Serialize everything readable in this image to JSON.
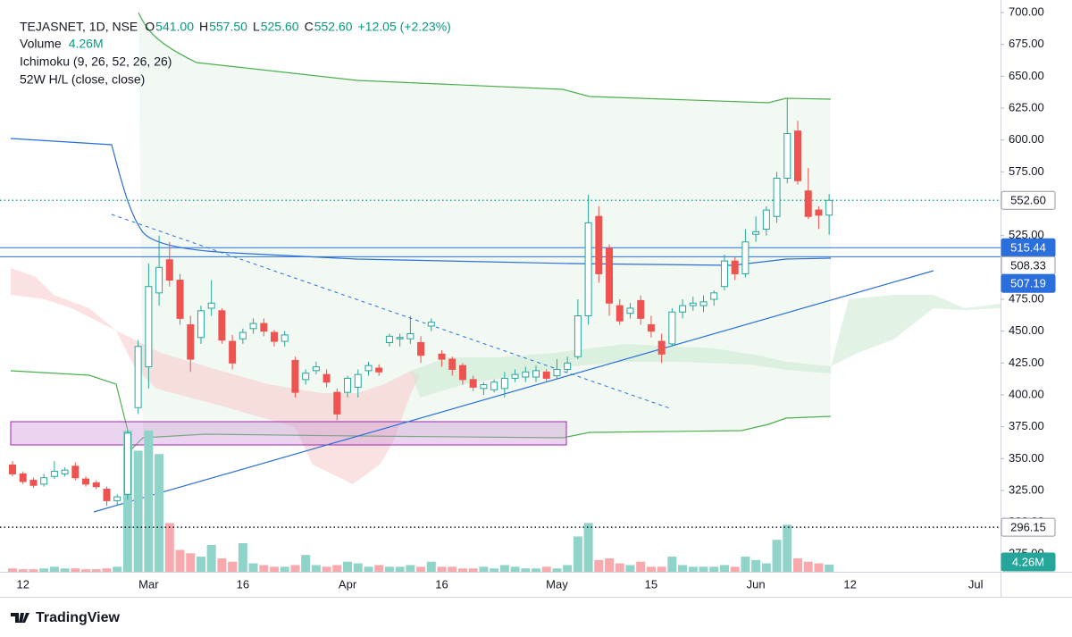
{
  "header": {
    "symbol": "TEJASNET, 1D, NSE",
    "ohlc": [
      {
        "label": "O",
        "value": "541.00"
      },
      {
        "label": "H",
        "value": "557.50"
      },
      {
        "label": "L",
        "value": "525.60"
      },
      {
        "label": "C",
        "value": "552.60"
      }
    ],
    "change": "+12.05 (+2.23%)",
    "indicators": [
      "Volume",
      "Ichimoku (9, 26, 52, 26, 26)",
      "52W H/L (close, close)"
    ]
  },
  "footer": {
    "brand": "TradingView"
  },
  "chart_data": {
    "type": "candlestick",
    "categories": [
      null,
      "12",
      null,
      null,
      null,
      null,
      null,
      null,
      null,
      null,
      null,
      null,
      null,
      "Mar",
      null,
      null,
      null,
      null,
      null,
      null,
      null,
      null,
      "16",
      null,
      null,
      null,
      null,
      null,
      null,
      null,
      null,
      null,
      "Apr",
      null,
      null,
      null,
      null,
      null,
      null,
      null,
      null,
      "16",
      null,
      null,
      null,
      null,
      null,
      null,
      null,
      null,
      null,
      null,
      "May",
      null,
      null,
      null,
      null,
      null,
      null,
      null,
      null,
      "15",
      null,
      null,
      null,
      null,
      null,
      null,
      null,
      null,
      null,
      "Jun",
      null,
      null,
      null,
      null,
      null,
      null,
      null,
      null,
      "12",
      null,
      null,
      null,
      null,
      null,
      null,
      null,
      null,
      null,
      null,
      null,
      "Jul"
    ],
    "open": [
      345,
      338,
      333,
      330,
      336,
      338,
      344,
      334,
      331,
      326,
      317,
      322,
      390,
      422,
      480,
      506,
      490,
      455,
      445,
      468,
      466,
      442,
      444,
      452,
      456,
      449,
      442,
      427,
      412,
      419,
      416,
      402,
      402,
      406,
      419,
      421,
      441,
      444,
      444,
      441,
      454,
      432,
      428,
      423,
      412,
      405,
      404,
      405,
      413,
      414,
      414,
      418,
      415,
      420,
      430,
      462,
      540,
      515,
      470,
      464,
      474,
      455,
      442,
      440,
      465,
      470,
      470,
      475,
      485,
      505,
      495,
      526,
      530,
      540,
      570,
      607,
      560,
      545,
      541,
      null,
      null,
      null,
      null,
      null,
      null,
      null,
      null,
      null,
      null,
      null,
      null,
      null,
      null
    ],
    "high": [
      348,
      340,
      335,
      338,
      348,
      343,
      347,
      336,
      333,
      328,
      322,
      372,
      443,
      503,
      525,
      520,
      495,
      462,
      470,
      490,
      468,
      447,
      452,
      460,
      460,
      451,
      450,
      430,
      420,
      426,
      420,
      405,
      415,
      420,
      426,
      424,
      448,
      448,
      462,
      446,
      460,
      435,
      430,
      425,
      415,
      410,
      412,
      418,
      420,
      422,
      423,
      420,
      428,
      430,
      475,
      557,
      548,
      518,
      475,
      472,
      478,
      462,
      448,
      468,
      475,
      477,
      478,
      482,
      510,
      508,
      530,
      540,
      548,
      575,
      632,
      615,
      578,
      548,
      557.5,
      null,
      null,
      null,
      null,
      null,
      null,
      null,
      null,
      null,
      null,
      null,
      null,
      null,
      null
    ],
    "low": [
      336,
      330,
      327,
      328,
      334,
      336,
      333,
      328,
      326,
      313,
      313,
      318,
      385,
      405,
      470,
      485,
      455,
      418,
      440,
      462,
      440,
      420,
      440,
      448,
      446,
      438,
      438,
      398,
      408,
      416,
      406,
      380,
      398,
      398,
      415,
      415,
      438,
      438,
      440,
      425,
      450,
      422,
      415,
      408,
      403,
      400,
      402,
      398,
      410,
      410,
      410,
      410,
      412,
      418,
      428,
      455,
      488,
      462,
      455,
      460,
      455,
      445,
      425,
      438,
      460,
      466,
      465,
      470,
      482,
      490,
      492,
      520,
      525,
      535,
      566,
      565,
      538,
      530,
      525.6,
      null,
      null,
      null,
      null,
      null,
      null,
      null,
      null,
      null,
      null,
      null,
      null,
      null,
      null
    ],
    "close": [
      338,
      332,
      329,
      335,
      340,
      341,
      335,
      330,
      328,
      317,
      320,
      370,
      438,
      485,
      500,
      490,
      460,
      428,
      466,
      472,
      443,
      425,
      449,
      456,
      450,
      442,
      447,
      402,
      417,
      422,
      410,
      385,
      413,
      416,
      423,
      418,
      446,
      445,
      448,
      431,
      457,
      428,
      420,
      412,
      406,
      408,
      410,
      413,
      416,
      418,
      419,
      413,
      420,
      425,
      462,
      535,
      495,
      472,
      458,
      468,
      460,
      450,
      432,
      465,
      470,
      472,
      473,
      480,
      505,
      495,
      520,
      528,
      545,
      570,
      605,
      568,
      540,
      541,
      552.6,
      null,
      null,
      null,
      null,
      null,
      null,
      null,
      null,
      null,
      null,
      null,
      null,
      null,
      null
    ],
    "volume": [
      2,
      1.5,
      1.5,
      2,
      3,
      2,
      2,
      1.5,
      1.5,
      2,
      3,
      84,
      72,
      84,
      70,
      29,
      13,
      11,
      9,
      16,
      8,
      6,
      17,
      5,
      4,
      3,
      3,
      4,
      10,
      4,
      3,
      4,
      6,
      5,
      3,
      4,
      3,
      3,
      4,
      3,
      6,
      3,
      3,
      2,
      2,
      3,
      2,
      4,
      3,
      2,
      2,
      3,
      2,
      4,
      21,
      29,
      7,
      8,
      5,
      4,
      6,
      3,
      3,
      9,
      4,
      3,
      3,
      3,
      4,
      3,
      9,
      7,
      5,
      19,
      28,
      8,
      6,
      5,
      4.26,
      null,
      null,
      null,
      null,
      null,
      null,
      null,
      null,
      null,
      null,
      null,
      null,
      null,
      null
    ],
    "volume_label": "4.26M",
    "volume_ylim": [
      0,
      85
    ],
    "up_color": "#26a69a",
    "down_color": "#ef5350",
    "volume_up_color": "#8fd3c9",
    "volume_down_color": "#f7a9ad",
    "ylim": [
      261.2,
      709.8
    ],
    "yticks": [
      {
        "value": 275,
        "label": "275.00"
      },
      {
        "value": 300,
        "label": "300.00"
      },
      {
        "value": 325,
        "label": "325.00"
      },
      {
        "value": 350,
        "label": "350.00"
      },
      {
        "value": 375,
        "label": "375.00"
      },
      {
        "value": 400,
        "label": "400.00"
      },
      {
        "value": 425,
        "label": "425.00"
      },
      {
        "value": 450,
        "label": "450.00"
      },
      {
        "value": 475,
        "label": "475.00"
      },
      {
        "value": 500,
        "label": "500.00"
      },
      {
        "value": 525,
        "label": "525.00"
      },
      {
        "value": 550,
        "label": "550.00"
      },
      {
        "value": 575,
        "label": "575.00"
      },
      {
        "value": 600,
        "label": "600.00"
      },
      {
        "value": 625,
        "label": "625.00"
      },
      {
        "value": 650,
        "label": "650.00"
      },
      {
        "value": 675,
        "label": "675.00"
      },
      {
        "value": 700,
        "label": "700.00"
      }
    ],
    "grid": false,
    "price_lines": [
      {
        "value": 552.6,
        "label": "552.60",
        "style": "dotted",
        "color": "#26a69a",
        "box": "outline"
      },
      {
        "value": 515.44,
        "label": "515.44",
        "style": "solid",
        "color": "#2a6fdb",
        "box": "filled"
      },
      {
        "value": 508.33,
        "label": "508.33",
        "style": "solid",
        "color": "#2a6fdb",
        "box": "outline"
      },
      {
        "value": 507.19,
        "label": "507.19",
        "style": "none",
        "color": "#2a6fdb",
        "box": "filled"
      },
      {
        "value": 296.15,
        "label": "296.15",
        "style": "dotted",
        "color": "#131722",
        "box": "outline"
      }
    ]
  }
}
